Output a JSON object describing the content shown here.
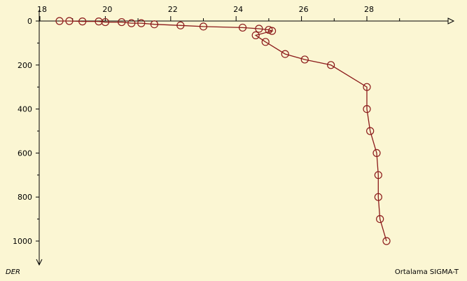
{
  "chart_data": {
    "type": "line",
    "title": "",
    "xlabel": "Ortalama SIGMA-T",
    "ylabel": "DER",
    "x_ticks": [
      "18",
      "20",
      "22",
      "24",
      "26",
      "28"
    ],
    "y_ticks": [
      "0",
      "200",
      "400",
      "600",
      "800",
      "1000"
    ],
    "xlim": [
      17.9,
      30.7
    ],
    "ylim": [
      0,
      1100
    ],
    "x_axis_position": "top",
    "y_axis_inverted": true,
    "grid": false,
    "series": [
      {
        "marker": "open-circle",
        "points": [
          {
            "x": 18.6,
            "y": 0
          },
          {
            "x": 18.9,
            "y": 0
          },
          {
            "x": 19.3,
            "y": 2
          },
          {
            "x": 19.8,
            "y": 2
          },
          {
            "x": 20.0,
            "y": 5
          },
          {
            "x": 20.5,
            "y": 5
          },
          {
            "x": 20.8,
            "y": 10
          },
          {
            "x": 21.1,
            "y": 10
          },
          {
            "x": 21.5,
            "y": 15
          },
          {
            "x": 22.3,
            "y": 20
          },
          {
            "x": 23.0,
            "y": 25
          },
          {
            "x": 24.2,
            "y": 30
          },
          {
            "x": 24.7,
            "y": 35
          },
          {
            "x": 25.0,
            "y": 40
          },
          {
            "x": 25.1,
            "y": 45
          },
          {
            "x": 24.6,
            "y": 65
          },
          {
            "x": 24.9,
            "y": 95
          },
          {
            "x": 25.5,
            "y": 150
          },
          {
            "x": 26.1,
            "y": 175
          },
          {
            "x": 26.9,
            "y": 200
          },
          {
            "x": 28.0,
            "y": 300
          },
          {
            "x": 28.0,
            "y": 400
          },
          {
            "x": 28.1,
            "y": 500
          },
          {
            "x": 28.3,
            "y": 600
          },
          {
            "x": 28.35,
            "y": 700
          },
          {
            "x": 28.35,
            "y": 800
          },
          {
            "x": 28.4,
            "y": 900
          },
          {
            "x": 28.6,
            "y": 1000
          }
        ]
      }
    ]
  },
  "colors": {
    "background": "#fbf6d3",
    "series": "#8b1a1a",
    "axis": "#000000"
  }
}
